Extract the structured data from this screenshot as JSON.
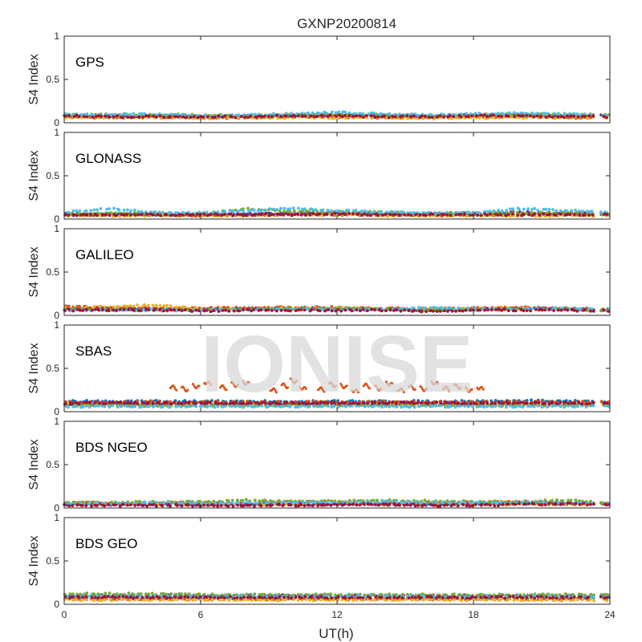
{
  "colors": [
    "#0072BD",
    "#D95319",
    "#EDB120",
    "#7E2F8E",
    "#77AC30",
    "#4DBEEE",
    "#A2142F"
  ],
  "chart_data": {
    "type": "scatter",
    "title": "GXNP20200814",
    "xlabel": "UT(h)",
    "x_ticks": [
      "0",
      "6",
      "12",
      "18",
      "24"
    ],
    "xlim": [
      0,
      24
    ],
    "ylim": [
      0,
      1
    ],
    "y_ticks": [
      "0",
      "0.5",
      "1"
    ],
    "ylabel": "S4 Index",
    "grid": false,
    "watermark": "IONISE",
    "data_gap_hours": [
      23.3,
      23.6
    ],
    "panels": [
      {
        "label": "GPS",
        "series": [
          {
            "color_index": 0,
            "values": [
              0.08,
              0.07,
              0.08,
              0.07,
              0.07,
              0.08,
              0.09,
              0.08,
              0.07,
              0.08,
              0.08,
              0.07,
              0.07
            ]
          },
          {
            "color_index": 1,
            "values": [
              0.07,
              0.06,
              0.07,
              0.06,
              0.06,
              0.07,
              0.07,
              0.06,
              0.06,
              0.07,
              0.07,
              0.06,
              0.06
            ]
          },
          {
            "color_index": 2,
            "values": [
              0.06,
              0.06,
              0.06,
              0.05,
              0.06,
              0.06,
              0.06,
              0.06,
              0.05,
              0.06,
              0.06,
              0.06,
              0.06
            ]
          },
          {
            "color_index": 3,
            "values": [
              0.09,
              0.08,
              0.08,
              0.07,
              0.08,
              0.08,
              0.09,
              0.09,
              0.08,
              0.09,
              0.09,
              0.08,
              0.09
            ]
          },
          {
            "color_index": 4,
            "values": [
              0.09,
              0.1,
              0.09,
              0.09,
              0.08,
              0.09,
              0.1,
              0.09,
              0.08,
              0.09,
              0.1,
              0.09,
              0.1
            ]
          },
          {
            "color_index": 5,
            "values": [
              0.1,
              0.09,
              0.1,
              0.08,
              0.09,
              0.1,
              0.12,
              0.1,
              0.09,
              0.1,
              0.11,
              0.1,
              0.09
            ]
          },
          {
            "color_index": 6,
            "values": [
              0.08,
              0.07,
              0.07,
              0.07,
              0.07,
              0.08,
              0.08,
              0.07,
              0.07,
              0.08,
              0.08,
              0.07,
              0.07
            ]
          }
        ]
      },
      {
        "label": "GLONASS",
        "series": [
          {
            "color_index": 0,
            "values": [
              0.06,
              0.06,
              0.05,
              0.05,
              0.06,
              0.06,
              0.07,
              0.06,
              0.05,
              0.06,
              0.06,
              0.05,
              0.05
            ]
          },
          {
            "color_index": 1,
            "values": [
              0.05,
              0.05,
              0.05,
              0.04,
              0.05,
              0.05,
              0.05,
              0.05,
              0.04,
              0.05,
              0.05,
              0.05,
              0.05
            ]
          },
          {
            "color_index": 2,
            "values": [
              0.04,
              0.04,
              0.04,
              0.04,
              0.04,
              0.05,
              0.05,
              0.04,
              0.04,
              0.04,
              0.04,
              0.04,
              0.04
            ]
          },
          {
            "color_index": 3,
            "values": [
              0.05,
              0.05,
              0.06,
              0.05,
              0.06,
              0.06,
              0.07,
              0.06,
              0.06,
              0.07,
              0.08,
              0.07,
              0.06
            ]
          },
          {
            "color_index": 4,
            "values": [
              0.06,
              0.07,
              0.07,
              0.06,
              0.12,
              0.09,
              0.08,
              0.08,
              0.07,
              0.07,
              0.07,
              0.07,
              0.06
            ]
          },
          {
            "color_index": 5,
            "values": [
              0.08,
              0.12,
              0.08,
              0.07,
              0.1,
              0.12,
              0.1,
              0.08,
              0.07,
              0.07,
              0.12,
              0.1,
              0.08
            ]
          },
          {
            "color_index": 6,
            "values": [
              0.05,
              0.05,
              0.05,
              0.05,
              0.05,
              0.05,
              0.06,
              0.05,
              0.05,
              0.05,
              0.05,
              0.05,
              0.05
            ]
          }
        ]
      },
      {
        "label": "GALILEO",
        "series": [
          {
            "color_index": 0,
            "values": [
              0.08,
              0.08,
              0.07,
              0.07,
              0.08,
              0.08,
              0.08,
              0.07,
              0.07,
              0.08,
              0.08,
              0.08,
              0.07
            ]
          },
          {
            "color_index": 1,
            "values": [
              0.1,
              0.09,
              0.08,
              0.08,
              0.09,
              0.09,
              0.09,
              0.08,
              0.08,
              0.08,
              0.09,
              0.08,
              0.07
            ]
          },
          {
            "color_index": 2,
            "values": [
              0.08,
              0.1,
              0.12,
              0.07,
              0.07,
              0.08,
              0.08,
              0.07,
              0.07,
              0.08,
              0.08,
              0.07,
              0.06
            ]
          },
          {
            "color_index": 3,
            "values": [
              0.07,
              0.07,
              0.07,
              0.06,
              0.07,
              0.07,
              0.07,
              0.07,
              0.06,
              0.07,
              0.08,
              0.07,
              0.06
            ]
          },
          {
            "color_index": 4,
            "values": [
              0.07,
              0.07,
              0.06,
              0.06,
              0.07,
              0.08,
              0.08,
              0.07,
              0.06,
              0.07,
              0.07,
              0.07,
              0.06
            ]
          },
          {
            "color_index": 5,
            "values": [
              0.06,
              0.06,
              0.06,
              0.06,
              0.06,
              0.07,
              0.07,
              0.06,
              0.09,
              0.07,
              0.07,
              0.08,
              0.06
            ]
          },
          {
            "color_index": 6,
            "values": [
              0.06,
              0.06,
              0.06,
              0.05,
              0.06,
              0.06,
              0.06,
              0.06,
              0.05,
              0.06,
              0.06,
              0.06,
              0.05
            ]
          }
        ]
      },
      {
        "label": "SBAS",
        "series": [
          {
            "color_index": 0,
            "values": [
              0.12,
              0.12,
              0.12,
              0.12,
              0.12,
              0.12,
              0.12,
              0.12,
              0.12,
              0.12,
              0.13,
              0.12,
              0.12
            ]
          },
          {
            "color_index": 1,
            "values": [
              0.11,
              0.11,
              0.11,
              0.11,
              0.11,
              0.11,
              0.11,
              0.11,
              0.11,
              0.11,
              0.11,
              0.11,
              0.11
            ]
          },
          {
            "color_index": 2,
            "values": [
              0.08,
              0.08,
              0.08,
              0.08,
              0.08,
              0.08,
              0.08,
              0.08,
              0.08,
              0.08,
              0.08,
              0.08,
              0.08
            ]
          },
          {
            "color_index": 3,
            "values": [
              0.09,
              0.09,
              0.09,
              0.09,
              0.09,
              0.09,
              0.09,
              0.09,
              0.09,
              0.09,
              0.09,
              0.09,
              0.09
            ]
          },
          {
            "color_index": 4,
            "values": [
              0.07,
              0.07,
              0.07,
              0.07,
              0.07,
              0.07,
              0.07,
              0.07,
              0.07,
              0.07,
              0.07,
              0.07,
              0.07
            ]
          },
          {
            "color_index": 5,
            "values": [
              0.06,
              0.06,
              0.06,
              0.06,
              0.06,
              0.06,
              0.06,
              0.06,
              0.06,
              0.06,
              0.06,
              0.06,
              0.06
            ]
          },
          {
            "color_index": 6,
            "values": [
              0.1,
              0.1,
              0.1,
              0.1,
              0.1,
              0.1,
              0.1,
              0.1,
              0.1,
              0.1,
              0.1,
              0.1,
              0.1
            ]
          }
        ],
        "highlight_series": {
          "color_index": 1,
          "x": [
            4.8,
            5.3,
            5.8,
            6.3,
            7.0,
            7.5,
            8.0,
            9.2,
            9.7,
            10.1,
            10.5,
            11.3,
            11.8,
            12.3,
            12.8,
            13.3,
            13.8,
            14.3,
            14.8,
            15.3,
            15.8,
            16.3,
            16.8,
            17.3,
            17.8,
            18.3
          ],
          "y": [
            0.28,
            0.26,
            0.29,
            0.33,
            0.28,
            0.31,
            0.33,
            0.25,
            0.3,
            0.35,
            0.27,
            0.26,
            0.31,
            0.29,
            0.24,
            0.3,
            0.27,
            0.32,
            0.25,
            0.28,
            0.26,
            0.33,
            0.27,
            0.29,
            0.25,
            0.27
          ]
        }
      },
      {
        "label": "BDS NGEO",
        "series": [
          {
            "color_index": 0,
            "values": [
              0.05,
              0.05,
              0.05,
              0.05,
              0.05,
              0.05,
              0.05,
              0.05,
              0.05,
              0.05,
              0.05,
              0.05,
              0.05
            ]
          },
          {
            "color_index": 1,
            "values": [
              0.06,
              0.06,
              0.06,
              0.06,
              0.06,
              0.07,
              0.07,
              0.06,
              0.06,
              0.07,
              0.07,
              0.06,
              0.06
            ]
          },
          {
            "color_index": 2,
            "values": [
              0.04,
              0.04,
              0.04,
              0.04,
              0.04,
              0.04,
              0.05,
              0.04,
              0.04,
              0.04,
              0.04,
              0.04,
              0.04
            ]
          },
          {
            "color_index": 3,
            "values": [
              0.04,
              0.04,
              0.04,
              0.04,
              0.04,
              0.04,
              0.04,
              0.04,
              0.04,
              0.05,
              0.05,
              0.06,
              0.04
            ]
          },
          {
            "color_index": 4,
            "values": [
              0.06,
              0.06,
              0.07,
              0.07,
              0.09,
              0.08,
              0.08,
              0.09,
              0.08,
              0.07,
              0.07,
              0.09,
              0.06
            ]
          },
          {
            "color_index": 5,
            "values": [
              0.05,
              0.05,
              0.06,
              0.05,
              0.06,
              0.06,
              0.06,
              0.07,
              0.06,
              0.06,
              0.06,
              0.06,
              0.05
            ]
          },
          {
            "color_index": 6,
            "values": [
              0.03,
              0.03,
              0.03,
              0.03,
              0.03,
              0.03,
              0.04,
              0.04,
              0.03,
              0.03,
              0.04,
              0.05,
              0.03
            ]
          }
        ]
      },
      {
        "label": "BDS GEO",
        "series": [
          {
            "color_index": 0,
            "values": [
              0.07,
              0.07,
              0.07,
              0.07,
              0.07,
              0.07,
              0.07,
              0.07,
              0.07,
              0.07,
              0.07,
              0.07,
              0.07
            ]
          },
          {
            "color_index": 1,
            "values": [
              0.06,
              0.06,
              0.06,
              0.06,
              0.06,
              0.06,
              0.06,
              0.06,
              0.06,
              0.06,
              0.06,
              0.06,
              0.06
            ]
          },
          {
            "color_index": 2,
            "values": [
              0.05,
              0.05,
              0.05,
              0.05,
              0.05,
              0.05,
              0.05,
              0.05,
              0.05,
              0.05,
              0.05,
              0.05,
              0.05
            ]
          },
          {
            "color_index": 3,
            "values": [
              0.1,
              0.1,
              0.1,
              0.1,
              0.1,
              0.1,
              0.1,
              0.1,
              0.1,
              0.1,
              0.1,
              0.1,
              0.1
            ]
          },
          {
            "color_index": 4,
            "values": [
              0.12,
              0.12,
              0.12,
              0.11,
              0.11,
              0.11,
              0.11,
              0.11,
              0.11,
              0.11,
              0.11,
              0.11,
              0.11
            ]
          },
          {
            "color_index": 5,
            "values": [
              0.09,
              0.09,
              0.09,
              0.09,
              0.09,
              0.09,
              0.09,
              0.09,
              0.09,
              0.09,
              0.09,
              0.09,
              0.09
            ]
          },
          {
            "color_index": 6,
            "values": [
              0.08,
              0.08,
              0.08,
              0.08,
              0.08,
              0.08,
              0.08,
              0.08,
              0.08,
              0.08,
              0.08,
              0.08,
              0.08
            ]
          }
        ]
      }
    ]
  }
}
